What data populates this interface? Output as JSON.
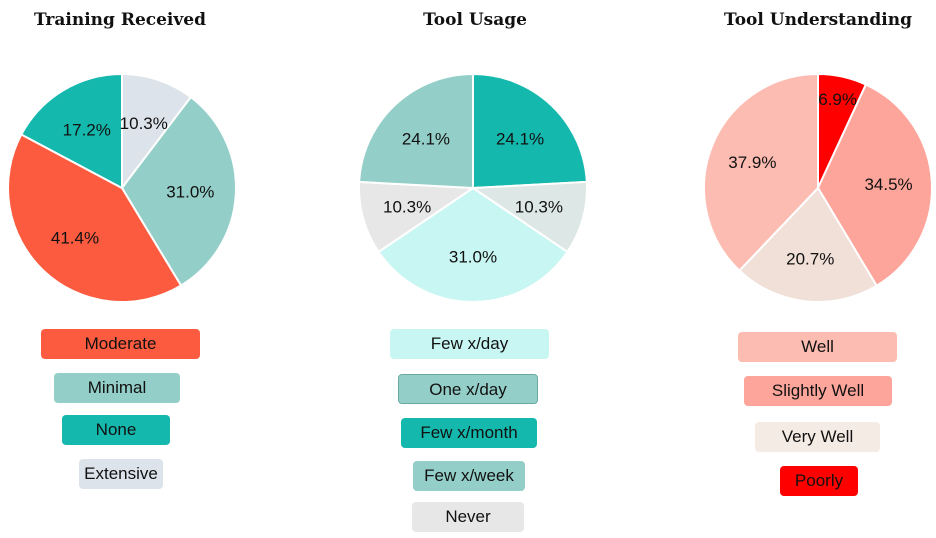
{
  "chart_data": [
    {
      "type": "pie",
      "title": "Training Received",
      "slices": [
        {
          "label": "Extensive",
          "value": 10.3,
          "display": "10.3%",
          "color": "#dde3ea"
        },
        {
          "label": "Minimal",
          "value": 31.0,
          "display": "31.0%",
          "color": "#93cfc8"
        },
        {
          "label": "Moderate",
          "value": 41.4,
          "display": "41.4%",
          "color": "#fc5b3f"
        },
        {
          "label": "None",
          "value": 17.2,
          "display": "17.2%",
          "color": "#15b8ad"
        }
      ],
      "legend_order": [
        "Moderate",
        "Minimal",
        "None",
        "Extensive"
      ]
    },
    {
      "type": "pie",
      "title": "Tool Usage",
      "slices": [
        {
          "label": "Few x/month",
          "value": 24.1,
          "display": "24.1%",
          "color": "#15b8ad"
        },
        {
          "label": "Never",
          "value": 10.3,
          "display": "10.3%",
          "color": "#dde7e5"
        },
        {
          "label": "Few x/day",
          "value": 31.0,
          "display": "31.0%",
          "color": "#c8f6f3"
        },
        {
          "label": "Few x/week",
          "value": 10.3,
          "display": "10.3%",
          "color": "#e7e7e7"
        },
        {
          "label": "One x/day",
          "value": 24.1,
          "display": "24.1%",
          "color": "#93cfc8"
        }
      ],
      "legend_order": [
        "Few x/day",
        "One x/day",
        "Few x/month",
        "Few x/week",
        "Never"
      ],
      "legend_colors": {
        "Few x/day": "#c8f6f3",
        "One x/day": "#93cfc8",
        "Few x/month": "#15b8ad",
        "Few x/week": "#93cfc8",
        "Never": "#e7e7e7"
      }
    },
    {
      "type": "pie",
      "title": "Tool Understanding",
      "slices": [
        {
          "label": "Poorly",
          "value": 6.9,
          "display": "6.9%",
          "color": "#ff0000"
        },
        {
          "label": "Slightly Well",
          "value": 34.5,
          "display": "34.5%",
          "color": "#fda59b"
        },
        {
          "label": "Very Well",
          "value": 20.7,
          "display": "20.7%",
          "color": "#f1e0d8"
        },
        {
          "label": "Well",
          "value": 37.9,
          "display": "37.9%",
          "color": "#fdbcb2"
        }
      ],
      "legend_order": [
        "Well",
        "Slightly Well",
        "Very Well",
        "Poorly"
      ],
      "legend_colors": {
        "Well": "#fdbcb2",
        "Slightly Well": "#fda59b",
        "Very Well": "#f5ebe5",
        "Poorly": "#ff0000"
      }
    }
  ]
}
